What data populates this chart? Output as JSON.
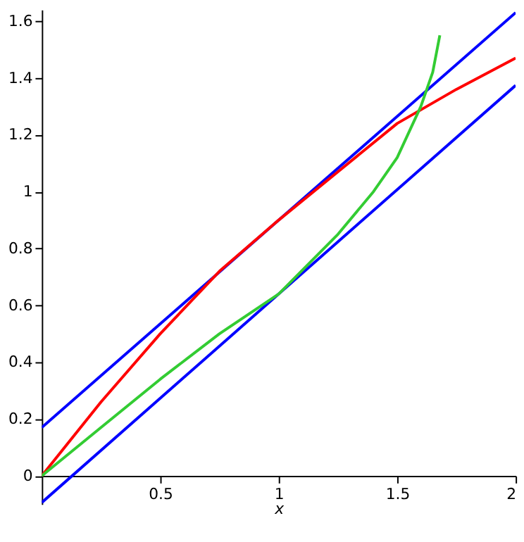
{
  "chart_data": {
    "type": "line",
    "xlabel": "x",
    "xlim": [
      0,
      2
    ],
    "ylim": [
      -0.1,
      1.64
    ],
    "xticks": [
      0.5,
      1,
      1.5,
      2
    ],
    "yticks": [
      0,
      0.2,
      0.4,
      0.6,
      0.8,
      1,
      1.2,
      1.4,
      1.6
    ],
    "grid": false,
    "legend": false,
    "marker": "none",
    "line_style": "solid",
    "series": [
      {
        "color": "#0000ff",
        "x": [
          0,
          2
        ],
        "values": [
          0.17,
          1.63
        ]
      },
      {
        "color": "#0000ff",
        "x": [
          0,
          2
        ],
        "values": [
          -0.094,
          1.374
        ]
      },
      {
        "color": "#ff0000",
        "x": [
          0,
          0.25,
          0.5,
          0.75,
          1,
          1.25,
          1.5,
          1.75,
          2
        ],
        "values": [
          0,
          0.26,
          0.5,
          0.72,
          0.9,
          1.07,
          1.24,
          1.36,
          1.47
        ]
      },
      {
        "color": "#33cc33",
        "x": [
          0,
          0.25,
          0.5,
          0.75,
          1,
          1.25,
          1.4,
          1.5,
          1.6,
          1.65,
          1.68
        ],
        "values": [
          0,
          0.17,
          0.34,
          0.5,
          0.64,
          0.85,
          1.0,
          1.12,
          1.3,
          1.42,
          1.55
        ]
      }
    ]
  }
}
